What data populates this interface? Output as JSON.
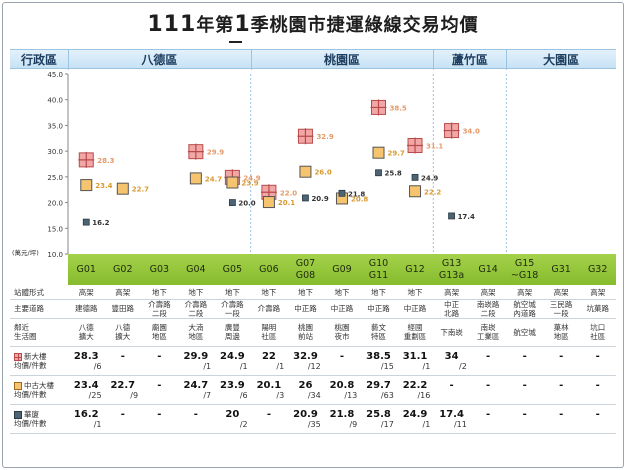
{
  "title": {
    "num1": "111",
    "text1": "年第",
    "num2": "1",
    "text2": "季桃園市捷運綠線交易均價"
  },
  "districts": {
    "header": "行政區",
    "items": [
      {
        "name": "八德區",
        "from": 0,
        "to": 5
      },
      {
        "name": "桃園區",
        "from": 5,
        "to": 10
      },
      {
        "name": "蘆竹區",
        "from": 10,
        "to": 12
      },
      {
        "name": "大園區",
        "from": 12,
        "to": 15
      }
    ]
  },
  "colors": {
    "new_fill": "#f2a7a7",
    "new_line": "#b84a4a",
    "new_label": "#e59a6a",
    "mid_fill": "#f6c46e",
    "mid_line": "#a26a1a",
    "mid_label": "#d99a32",
    "hua_fill": "#4d6474",
    "hua_label": "#333333"
  },
  "chart_data": {
    "type": "scatter",
    "title": "111年第1季桃園市捷運綠線交易均價",
    "ylabel": "(萬元/坪)",
    "ylim": [
      10,
      45
    ],
    "yticks": [
      10.0,
      15.0,
      20.0,
      25.0,
      30.0,
      35.0,
      40.0,
      45.0
    ],
    "categories": [
      "G01",
      "G02",
      "G03",
      "G04",
      "G05",
      "G06",
      "G07\nG08",
      "G09",
      "G10\nG11",
      "G12",
      "G13\nG13a",
      "G14",
      "G15\n~G18",
      "G31",
      "G32"
    ],
    "series": [
      {
        "name": "新大樓",
        "key": "new",
        "values": [
          28.3,
          null,
          null,
          29.9,
          24.9,
          22.0,
          32.9,
          null,
          38.5,
          31.1,
          34.0,
          null,
          null,
          null,
          null
        ]
      },
      {
        "name": "中古大樓",
        "key": "mid",
        "values": [
          23.4,
          22.7,
          null,
          24.7,
          23.9,
          20.1,
          26.0,
          20.8,
          29.7,
          22.2,
          null,
          null,
          null,
          null,
          null
        ]
      },
      {
        "name": "華廈",
        "key": "hua",
        "values": [
          16.2,
          null,
          null,
          null,
          20.0,
          null,
          20.9,
          21.8,
          25.8,
          24.9,
          17.4,
          null,
          null,
          null,
          null
        ]
      }
    ],
    "point_labels": {
      "new": [
        "28.3",
        "",
        "",
        "29.9",
        "24.9",
        "22.0",
        "32.9",
        "",
        "38.5",
        "31.1",
        "34.0",
        "",
        "",
        "",
        ""
      ],
      "mid": [
        "23.4",
        "22.7",
        "",
        "24.7",
        "23.9",
        "20.1",
        "26.0",
        "20.8",
        "29.7",
        "22.2",
        "",
        "",
        "",
        "",
        ""
      ],
      "hua": [
        "16.2",
        "",
        "",
        "",
        "20.0",
        "",
        "20.9",
        "21.8",
        "25.8",
        "24.9",
        "17.4",
        "",
        "",
        "",
        ""
      ]
    }
  },
  "table": {
    "rows": [
      {
        "key": "form",
        "label": "站體形式",
        "cells": [
          "高架",
          "高架",
          "地下",
          "地下",
          "地下",
          "地下",
          "地下",
          "地下",
          "地下",
          "地下",
          "高架",
          "高架",
          "高架",
          "高架",
          "高架"
        ]
      },
      {
        "key": "road",
        "label": "主要道路",
        "cells": [
          "建德路",
          "豐田路",
          "介壽路\n二段",
          "介壽路\n二段",
          "介壽路\n一段",
          "介壽路",
          "中正路",
          "中正路",
          "中正路",
          "中正路",
          "中正\n北路",
          "南崁路\n二段",
          "航空城\n內道路",
          "三民路\n一段",
          "坑菓路"
        ]
      },
      {
        "key": "area",
        "label": "鄰近\n生活圈",
        "cells": [
          "八德\n擴大",
          "八德\n擴大",
          "廟園\n地區",
          "大湳\n地區",
          "廣豐\n周邊",
          "陽明\n社區",
          "桃園\n前站",
          "桃園\n夜市",
          "藝文\n特區",
          "經國\n重劃區",
          "下南崁",
          "南崁\n工業區",
          "航空城",
          "菓林\n地區",
          "坑口\n社區"
        ]
      },
      {
        "key": "new",
        "label": "新大樓\n均價/件數",
        "icon": "new",
        "vals": [
          "28.3",
          "-",
          "-",
          "29.9",
          "24.9",
          "22",
          "32.9",
          "-",
          "38.5",
          "31.1",
          "34",
          "-",
          "-",
          "-",
          "-"
        ],
        "cnts": [
          "/6",
          "",
          "",
          "/1",
          "/1",
          "/1",
          "/12",
          "",
          "/15",
          "/1",
          "/2",
          "",
          "",
          "",
          ""
        ]
      },
      {
        "key": "mid",
        "label": "中古大樓\n均價/件數",
        "icon": "mid",
        "vals": [
          "23.4",
          "22.7",
          "-",
          "24.7",
          "23.9",
          "20.1",
          "26",
          "20.8",
          "29.7",
          "22.2",
          "-",
          "-",
          "-",
          "-",
          "-"
        ],
        "cnts": [
          "/25",
          "/9",
          "",
          "/7",
          "/6",
          "/3",
          "/34",
          "/13",
          "/63",
          "/16",
          "",
          "",
          "",
          "",
          ""
        ]
      },
      {
        "key": "hua",
        "label": "華廈\n均價/件數",
        "icon": "hua",
        "vals": [
          "16.2",
          "-",
          "-",
          "-",
          "20",
          "-",
          "20.9",
          "21.8",
          "25.8",
          "24.9",
          "17.4",
          "-",
          "-",
          "-",
          "-"
        ],
        "cnts": [
          "/1",
          "",
          "",
          "",
          "/2",
          "",
          "/35",
          "/9",
          "/17",
          "/1",
          "/11",
          "",
          "",
          "",
          ""
        ]
      }
    ]
  }
}
